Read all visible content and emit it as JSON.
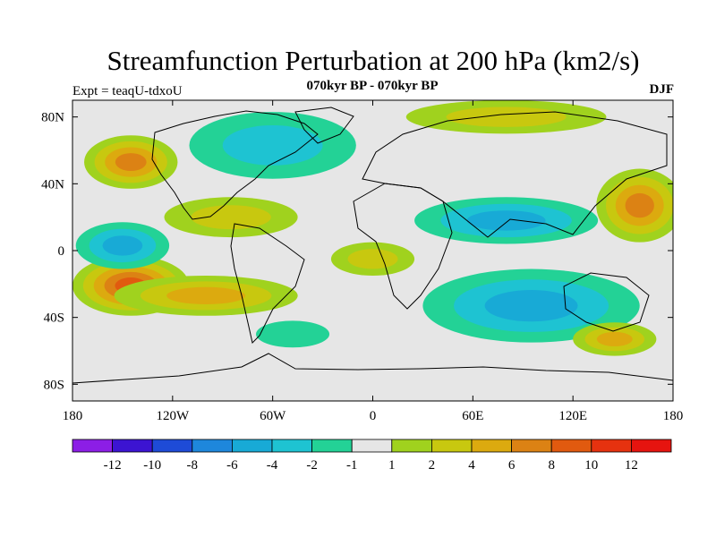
{
  "title": "Streamfunction Perturbation at 200 hPa (km2/s)",
  "subtitle": "070kyr BP - 070kyr BP",
  "experiment": "Expt = teaqU-tdxoU",
  "season": "DJF",
  "map": {
    "lon_range": [
      -180,
      180
    ],
    "lat_range": [
      -90,
      90
    ],
    "x_ticks": [
      {
        "lon": -180,
        "label": "180"
      },
      {
        "lon": -120,
        "label": "120W"
      },
      {
        "lon": -60,
        "label": "60W"
      },
      {
        "lon": 0,
        "label": "0"
      },
      {
        "lon": 60,
        "label": "60E"
      },
      {
        "lon": 120,
        "label": "120E"
      },
      {
        "lon": 180,
        "label": "180"
      }
    ],
    "y_ticks": [
      {
        "lat": 80,
        "label": "80N"
      },
      {
        "lat": 40,
        "label": "40N"
      },
      {
        "lat": 0,
        "label": "0"
      },
      {
        "lat": -40,
        "label": "40S"
      },
      {
        "lat": -80,
        "label": "80S"
      }
    ],
    "features": [
      {
        "name": "anomaly-north-pacific",
        "lon": -145,
        "lat": 53,
        "rx_deg": 28,
        "ry_deg": 16,
        "value": 7
      },
      {
        "name": "anomaly-south-pacific",
        "lon": -145,
        "lat": -21,
        "rx_deg": 35,
        "ry_deg": 18,
        "value": 10
      },
      {
        "name": "anomaly-tropical-east-pacific",
        "lon": -150,
        "lat": 3,
        "rx_deg": 28,
        "ry_deg": 14,
        "value": -6
      },
      {
        "name": "anomaly-northwest-pacific",
        "lon": 160,
        "lat": 27,
        "rx_deg": 26,
        "ry_deg": 22,
        "value": 7
      },
      {
        "name": "anomaly-north-america",
        "lon": -60,
        "lat": 63,
        "rx_deg": 50,
        "ry_deg": 20,
        "value": -4
      },
      {
        "name": "anomaly-arctic-siberia",
        "lon": 80,
        "lat": 80,
        "rx_deg": 60,
        "ry_deg": 10,
        "value": 3
      },
      {
        "name": "anomaly-asia",
        "lon": 80,
        "lat": 18,
        "rx_deg": 55,
        "ry_deg": 14,
        "value": -5
      },
      {
        "name": "anomaly-africa",
        "lon": 0,
        "lat": -5,
        "rx_deg": 25,
        "ry_deg": 10,
        "value": 3
      },
      {
        "name": "anomaly-indian-ocean",
        "lon": 95,
        "lat": -33,
        "rx_deg": 65,
        "ry_deg": 22,
        "value": -6
      },
      {
        "name": "anomaly-south-pacific-east",
        "lon": 145,
        "lat": -53,
        "rx_deg": 25,
        "ry_deg": 10,
        "value": 5
      },
      {
        "name": "anomaly-south-atlantic",
        "lon": -48,
        "lat": -50,
        "rx_deg": 22,
        "ry_deg": 8,
        "value": -2
      },
      {
        "name": "anomaly-tropical-americas",
        "lon": -85,
        "lat": 20,
        "rx_deg": 40,
        "ry_deg": 12,
        "value": 4
      },
      {
        "name": "anomaly-south-america",
        "lon": -100,
        "lat": -27,
        "rx_deg": 55,
        "ry_deg": 12,
        "value": 5
      }
    ]
  },
  "colorbar": {
    "labels": [
      "-12",
      "-10",
      "-8",
      "-6",
      "-4",
      "-2",
      "-1",
      "1",
      "2",
      "4",
      "6",
      "8",
      "10",
      "12"
    ],
    "colors": [
      "#8c1ee6",
      "#3c14d2",
      "#1e4bd7",
      "#1e87dc",
      "#18aad6",
      "#1ec3d2",
      "#23d296",
      "#e6e6e6",
      "#a0d21e",
      "#c8c80f",
      "#dcaa0f",
      "#dc8214",
      "#e15a0f",
      "#e6320f",
      "#e6140f"
    ]
  }
}
